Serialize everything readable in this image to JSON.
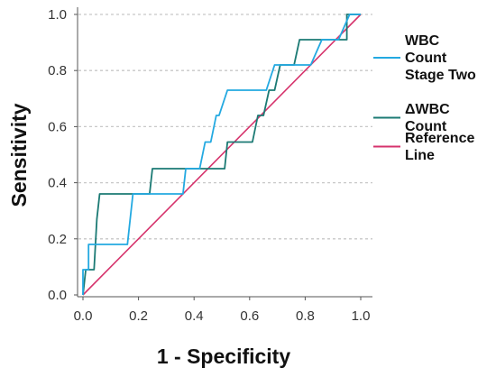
{
  "chart_data": {
    "type": "line",
    "xlabel": "1 - Specificity",
    "ylabel": "Sensitivity",
    "xlim": [
      0,
      1
    ],
    "ylim": [
      0,
      1
    ],
    "x_ticks": [
      "0.0",
      "0.2",
      "0.4",
      "0.6",
      "0.8",
      "1.0"
    ],
    "y_ticks": [
      "0.0",
      "0.2",
      "0.4",
      "0.6",
      "0.8",
      "1.0"
    ],
    "grid": "horizontal dashed",
    "legend_position": "right",
    "series": [
      {
        "name": "WBC Count Stage Two",
        "legend_lines": [
          "WBC",
          "Count",
          "Stage Two"
        ],
        "color": "#23a9e1",
        "points": [
          [
            0,
            0
          ],
          [
            0,
            0.09
          ],
          [
            0.02,
            0.09
          ],
          [
            0.02,
            0.18
          ],
          [
            0.16,
            0.18
          ],
          [
            0.18,
            0.36
          ],
          [
            0.36,
            0.36
          ],
          [
            0.37,
            0.45
          ],
          [
            0.42,
            0.45
          ],
          [
            0.44,
            0.545
          ],
          [
            0.46,
            0.545
          ],
          [
            0.48,
            0.64
          ],
          [
            0.49,
            0.64
          ],
          [
            0.52,
            0.73
          ],
          [
            0.66,
            0.73
          ],
          [
            0.69,
            0.82
          ],
          [
            0.82,
            0.82
          ],
          [
            0.86,
            0.91
          ],
          [
            0.92,
            0.91
          ],
          [
            0.96,
            1.0
          ],
          [
            1.0,
            1.0
          ]
        ]
      },
      {
        "name": "ΔWBC Count",
        "legend_lines": [
          "ΔWBC",
          "Count"
        ],
        "color": "#1b7a74",
        "points": [
          [
            0,
            0
          ],
          [
            0.01,
            0.09
          ],
          [
            0.04,
            0.09
          ],
          [
            0.05,
            0.27
          ],
          [
            0.06,
            0.36
          ],
          [
            0.24,
            0.36
          ],
          [
            0.25,
            0.45
          ],
          [
            0.51,
            0.45
          ],
          [
            0.52,
            0.545
          ],
          [
            0.61,
            0.545
          ],
          [
            0.63,
            0.64
          ],
          [
            0.65,
            0.64
          ],
          [
            0.67,
            0.73
          ],
          [
            0.69,
            0.73
          ],
          [
            0.71,
            0.82
          ],
          [
            0.76,
            0.82
          ],
          [
            0.78,
            0.91
          ],
          [
            0.95,
            0.91
          ],
          [
            0.95,
            1.0
          ],
          [
            1.0,
            1.0
          ]
        ]
      },
      {
        "name": "Reference Line",
        "legend_lines": [
          "Reference",
          "Line"
        ],
        "color": "#d6336c",
        "points": [
          [
            0,
            0
          ],
          [
            1,
            1
          ]
        ]
      }
    ]
  }
}
